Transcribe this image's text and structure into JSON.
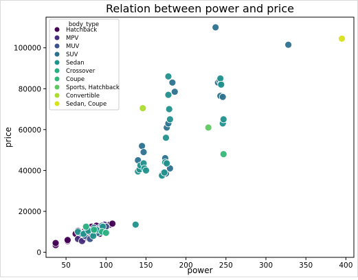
{
  "chart_data": {
    "type": "scatter",
    "title": "Relation between power and price",
    "xlabel": "power",
    "ylabel": "price",
    "xlim": [
      25,
      410
    ],
    "ylim": [
      -2500,
      115000
    ],
    "xticks": [
      50,
      100,
      150,
      200,
      250,
      300,
      350,
      400
    ],
    "yticks": [
      0,
      20000,
      40000,
      60000,
      80000,
      100000
    ],
    "grid": false,
    "legend": {
      "title": "body_type",
      "position": "top-left"
    },
    "series": [
      {
        "name": "Hatchback",
        "color": "#440154",
        "points": [
          [
            37,
            3500
          ],
          [
            37,
            4500
          ],
          [
            52,
            5500
          ],
          [
            52,
            6000
          ],
          [
            62,
            9000
          ],
          [
            65,
            10500
          ],
          [
            67,
            7500
          ],
          [
            70,
            8000
          ],
          [
            72,
            6500
          ],
          [
            72,
            10000
          ],
          [
            75,
            8500
          ],
          [
            77,
            9500
          ],
          [
            80,
            11000
          ],
          [
            82,
            12500
          ],
          [
            85,
            10000
          ],
          [
            88,
            13000
          ],
          [
            92,
            9000
          ],
          [
            95,
            11500
          ],
          [
            98,
            12000
          ],
          [
            105,
            13500
          ],
          [
            108,
            14000
          ]
        ]
      },
      {
        "name": "MPV",
        "color": "#472d7b",
        "points": [
          [
            65,
            6500
          ],
          [
            70,
            5500
          ],
          [
            75,
            7500
          ],
          [
            82,
            8500
          ],
          [
            90,
            11500
          ],
          [
            98,
            13500
          ]
        ]
      },
      {
        "name": "MUV",
        "color": "#3b528b",
        "points": [
          [
            68,
            9500
          ],
          [
            74,
            8000
          ],
          [
            80,
            6500
          ],
          [
            85,
            10500
          ],
          [
            92,
            12000
          ],
          [
            100,
            12500
          ]
        ]
      },
      {
        "name": "SUV",
        "color": "#2c728e",
        "points": [
          [
            70,
            9000
          ],
          [
            75,
            10000
          ],
          [
            78,
            11000
          ],
          [
            85,
            12000
          ],
          [
            90,
            9500
          ],
          [
            95,
            13000
          ],
          [
            140,
            45000
          ],
          [
            145,
            52000
          ],
          [
            147,
            49000
          ],
          [
            170,
            38000
          ],
          [
            172,
            39000
          ],
          [
            174,
            46000
          ],
          [
            175,
            38500
          ],
          [
            176,
            61000
          ],
          [
            178,
            63000
          ],
          [
            180,
            41000
          ],
          [
            183,
            83000
          ],
          [
            186,
            78500
          ],
          [
            237,
            110000
          ],
          [
            240,
            83000
          ],
          [
            242,
            84000
          ],
          [
            243,
            76500
          ],
          [
            244,
            82500
          ],
          [
            246,
            76000
          ],
          [
            328,
            101500
          ]
        ]
      },
      {
        "name": "Sedan",
        "color": "#21918c",
        "points": [
          [
            65,
            10000
          ],
          [
            72,
            9000
          ],
          [
            78,
            10500
          ],
          [
            84,
            8000
          ],
          [
            88,
            11000
          ],
          [
            96,
            12500
          ],
          [
            137,
            13500
          ],
          [
            140,
            39500
          ],
          [
            142,
            40500
          ],
          [
            143,
            42500
          ],
          [
            147,
            43500
          ],
          [
            148,
            41000
          ],
          [
            150,
            40000
          ],
          [
            170,
            37500
          ],
          [
            173,
            39000
          ],
          [
            174,
            44000
          ],
          [
            175,
            56000
          ],
          [
            176,
            43500
          ],
          [
            178,
            86000
          ],
          [
            178,
            77000
          ],
          [
            179,
            70000
          ],
          [
            180,
            65000
          ],
          [
            243,
            85000
          ],
          [
            244,
            82000
          ],
          [
            246,
            63000
          ],
          [
            247,
            65000
          ]
        ]
      },
      {
        "name": "Crossover",
        "color": "#28ae80",
        "points": [
          [
            75,
            12500
          ],
          [
            85,
            11000
          ],
          [
            95,
            10000
          ],
          [
            100,
            9500
          ]
        ]
      },
      {
        "name": "Coupe",
        "color": "#35b779",
        "points": [
          [
            247,
            48000
          ]
        ]
      },
      {
        "name": "Sports, Hatchback",
        "color": "#5ec962",
        "points": [
          [
            228,
            61000
          ]
        ]
      },
      {
        "name": "Convertible",
        "color": "#addc30",
        "points": [
          [
            146,
            70500
          ]
        ]
      },
      {
        "name": "Sedan, Coupe",
        "color": "#d8e219",
        "points": [
          [
            395,
            104500
          ]
        ]
      }
    ]
  }
}
